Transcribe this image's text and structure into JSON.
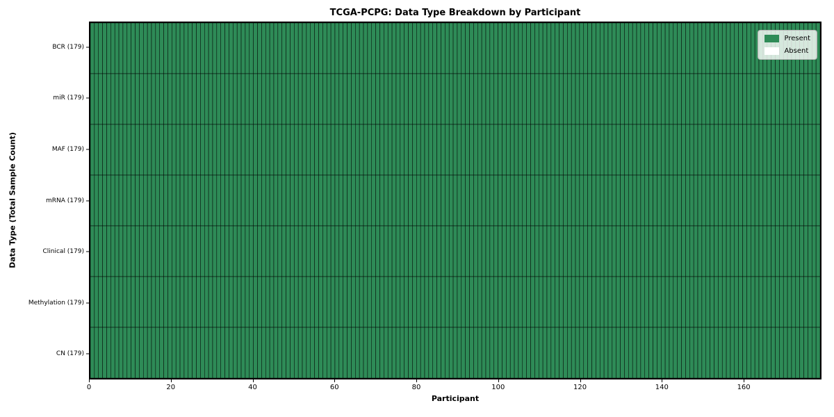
{
  "title": "TCGA-PCPG: Data Type Breakdown by Participant",
  "x_axis": {
    "label": "Participant",
    "ticks": [
      0,
      20,
      40,
      60,
      80,
      100,
      120,
      140,
      160
    ],
    "range": [
      0,
      179
    ]
  },
  "y_axis": {
    "label": "Data Type (Total Sample Count)"
  },
  "colors": {
    "present": "#2e8b57",
    "absent": "#ffffff",
    "cell_edge": "#000000",
    "legend_border": "#b4b4b4"
  },
  "chart_data": {
    "type": "heatmap",
    "title": "TCGA-PCPG: Data Type Breakdown by Participant",
    "xlabel": "Participant",
    "ylabel": "Data Type (Total Sample Count)",
    "n_participants": 179,
    "x_range": [
      0,
      179
    ],
    "x_ticks": [
      0,
      20,
      40,
      60,
      80,
      100,
      120,
      140,
      160
    ],
    "legend_position": "upper right",
    "grid": false,
    "all_cells_present": true,
    "legend": [
      {
        "label": "Present",
        "color": "#2e8b57"
      },
      {
        "label": "Absent",
        "color": "#ffffff"
      }
    ],
    "rows": [
      {
        "label": "BCR (179)",
        "data_type": "BCR",
        "total_samples": 179,
        "present_count": 179,
        "absent_count": 0
      },
      {
        "label": "miR (179)",
        "data_type": "miR",
        "total_samples": 179,
        "present_count": 179,
        "absent_count": 0
      },
      {
        "label": "MAF (179)",
        "data_type": "MAF",
        "total_samples": 179,
        "present_count": 179,
        "absent_count": 0
      },
      {
        "label": "mRNA (179)",
        "data_type": "mRNA",
        "total_samples": 179,
        "present_count": 179,
        "absent_count": 0
      },
      {
        "label": "Clinical (179)",
        "data_type": "Clinical",
        "total_samples": 179,
        "present_count": 179,
        "absent_count": 0
      },
      {
        "label": "Methylation (179)",
        "data_type": "Methylation",
        "total_samples": 179,
        "present_count": 179,
        "absent_count": 0
      },
      {
        "label": "CN (179)",
        "data_type": "CN",
        "total_samples": 179,
        "present_count": 179,
        "absent_count": 0
      }
    ]
  }
}
